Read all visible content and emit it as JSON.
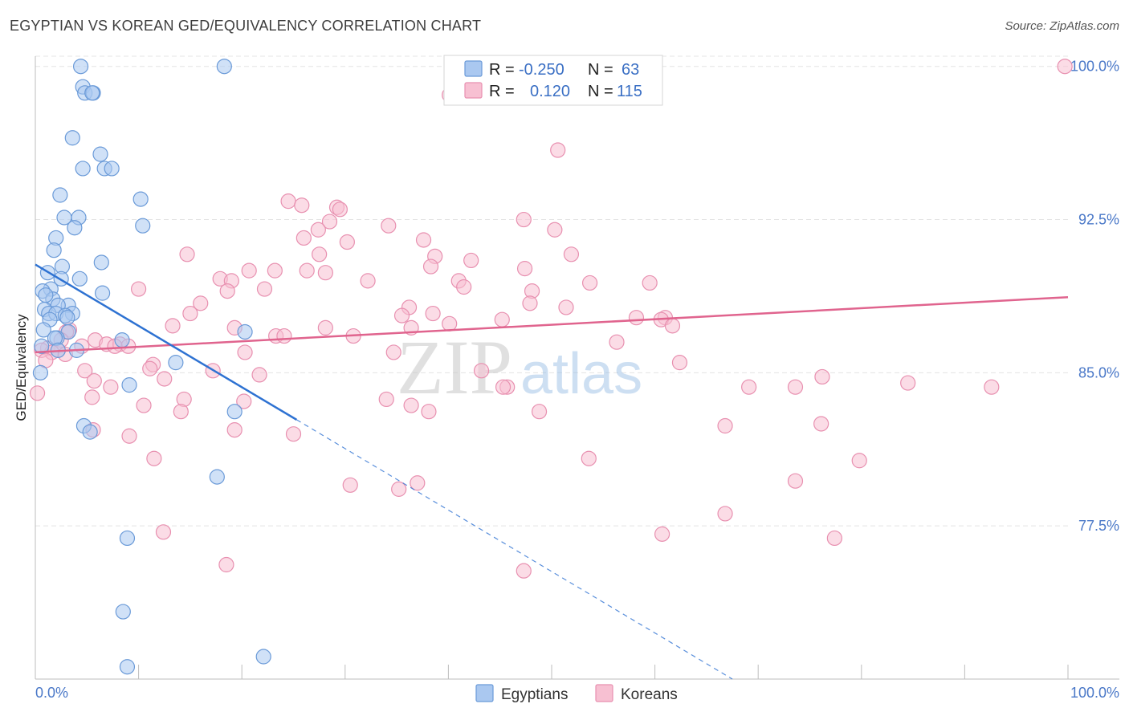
{
  "header": {
    "title": "EGYPTIAN VS KOREAN GED/EQUIVALENCY CORRELATION CHART",
    "source": "Source: ZipAtlas.com"
  },
  "watermark": {
    "zip": "ZIP",
    "atlas": "atlas"
  },
  "colors": {
    "egyptians_fill": "#aac8f0",
    "egyptians_stroke": "#6a9ad8",
    "egyptians_line": "#2e72d2",
    "koreans_fill": "#f7c0d2",
    "koreans_stroke": "#e890b0",
    "koreans_line": "#e0648e",
    "tick_text": "#4a78c8",
    "grid": "#e4e4e4"
  },
  "legend": {
    "rows": [
      {
        "r_label": "R = ",
        "r_value": "-0.250",
        "n_label": "N = ",
        "n_value": "63"
      },
      {
        "r_label": "R = ",
        "r_value": "0.120",
        "n_label": "N = ",
        "n_value": "115"
      }
    ]
  },
  "chart_data": {
    "type": "scatter",
    "xlabel": "",
    "ylabel": "GED/Equivalency",
    "xlim": [
      0,
      100
    ],
    "ylim": [
      70.0,
      100.5
    ],
    "x_tick_labels": [
      "0.0%",
      "100.0%"
    ],
    "y_ticks": [
      77.5,
      85.0,
      92.5,
      100.0
    ],
    "y_tick_labels": [
      "77.5%",
      "85.0%",
      "92.5%",
      "100.0%"
    ],
    "grid": true,
    "series": [
      {
        "name": "Egyptians",
        "r": -0.25,
        "n": 63,
        "trend": {
          "x": [
            0.0,
            25.3
          ],
          "y": [
            90.3,
            82.7
          ]
        },
        "trend_extension": {
          "x": [
            25.3,
            67.5
          ],
          "y": [
            82.7,
            70.0
          ]
        },
        "points": [
          [
            4.4,
            100.0
          ],
          [
            18.3,
            100.0
          ],
          [
            4.6,
            99.0
          ],
          [
            4.8,
            98.7
          ],
          [
            5.6,
            98.7
          ],
          [
            5.5,
            98.7
          ],
          [
            3.6,
            96.5
          ],
          [
            6.3,
            95.7
          ],
          [
            4.6,
            95.0
          ],
          [
            6.7,
            95.0
          ],
          [
            7.4,
            95.0
          ],
          [
            2.4,
            93.7
          ],
          [
            10.2,
            93.5
          ],
          [
            2.8,
            92.6
          ],
          [
            4.2,
            92.6
          ],
          [
            3.8,
            92.1
          ],
          [
            10.4,
            92.2
          ],
          [
            2.0,
            91.6
          ],
          [
            1.8,
            91.0
          ],
          [
            6.4,
            90.4
          ],
          [
            2.6,
            90.2
          ],
          [
            1.2,
            89.9
          ],
          [
            4.3,
            89.6
          ],
          [
            2.5,
            89.6
          ],
          [
            1.5,
            89.1
          ],
          [
            0.7,
            89.0
          ],
          [
            6.5,
            88.9
          ],
          [
            1.7,
            88.6
          ],
          [
            1.0,
            88.8
          ],
          [
            3.2,
            88.3
          ],
          [
            2.2,
            88.3
          ],
          [
            0.9,
            88.1
          ],
          [
            1.3,
            87.9
          ],
          [
            3.6,
            87.9
          ],
          [
            2.0,
            87.9
          ],
          [
            1.4,
            87.6
          ],
          [
            2.9,
            87.8
          ],
          [
            3.1,
            87.7
          ],
          [
            0.8,
            87.1
          ],
          [
            3.2,
            87.0
          ],
          [
            20.3,
            87.0
          ],
          [
            2.1,
            86.7
          ],
          [
            1.9,
            86.7
          ],
          [
            8.4,
            86.6
          ],
          [
            2.2,
            86.1
          ],
          [
            4.0,
            86.1
          ],
          [
            0.6,
            86.3
          ],
          [
            13.6,
            85.5
          ],
          [
            0.5,
            85.0
          ],
          [
            9.1,
            84.4
          ],
          [
            19.3,
            83.1
          ],
          [
            4.7,
            82.4
          ],
          [
            5.3,
            82.1
          ],
          [
            17.6,
            79.9
          ],
          [
            8.9,
            76.9
          ],
          [
            8.5,
            73.3
          ],
          [
            8.9,
            70.6
          ],
          [
            22.1,
            71.1
          ]
        ]
      },
      {
        "name": "Koreans",
        "r": 0.12,
        "n": 115,
        "trend": {
          "x": [
            0.0,
            100.0
          ],
          "y": [
            86.0,
            88.7
          ]
        },
        "points": [
          [
            40.1,
            98.6
          ],
          [
            99.7,
            100.0
          ],
          [
            50.6,
            95.9
          ],
          [
            24.5,
            93.4
          ],
          [
            25.8,
            93.2
          ],
          [
            29.2,
            93.1
          ],
          [
            29.5,
            93.0
          ],
          [
            28.5,
            92.4
          ],
          [
            47.3,
            92.5
          ],
          [
            34.2,
            92.2
          ],
          [
            50.3,
            92.0
          ],
          [
            27.4,
            92.0
          ],
          [
            37.6,
            91.5
          ],
          [
            26.0,
            91.6
          ],
          [
            30.2,
            91.4
          ],
          [
            14.7,
            90.8
          ],
          [
            27.5,
            90.8
          ],
          [
            38.7,
            90.7
          ],
          [
            51.9,
            90.8
          ],
          [
            42.2,
            90.5
          ],
          [
            38.3,
            90.2
          ],
          [
            20.7,
            90.0
          ],
          [
            28.1,
            89.9
          ],
          [
            26.3,
            90.0
          ],
          [
            47.4,
            90.1
          ],
          [
            23.2,
            90.0
          ],
          [
            17.9,
            89.6
          ],
          [
            19.0,
            89.5
          ],
          [
            32.2,
            89.5
          ],
          [
            41.0,
            89.5
          ],
          [
            53.7,
            89.4
          ],
          [
            59.5,
            89.4
          ],
          [
            41.5,
            89.2
          ],
          [
            10.0,
            89.1
          ],
          [
            18.6,
            89.0
          ],
          [
            22.2,
            89.1
          ],
          [
            48.1,
            89.0
          ],
          [
            47.9,
            88.4
          ],
          [
            16.0,
            88.4
          ],
          [
            36.2,
            88.2
          ],
          [
            15.0,
            87.9
          ],
          [
            51.4,
            88.2
          ],
          [
            35.5,
            87.8
          ],
          [
            38.5,
            87.9
          ],
          [
            58.2,
            87.7
          ],
          [
            61.0,
            87.7
          ],
          [
            60.6,
            87.6
          ],
          [
            45.2,
            87.6
          ],
          [
            40.1,
            87.4
          ],
          [
            13.3,
            87.3
          ],
          [
            19.3,
            87.2
          ],
          [
            28.1,
            87.2
          ],
          [
            36.4,
            87.2
          ],
          [
            61.7,
            87.3
          ],
          [
            3.3,
            87.1
          ],
          [
            3.0,
            87.0
          ],
          [
            23.3,
            86.8
          ],
          [
            24.1,
            86.8
          ],
          [
            30.8,
            86.8
          ],
          [
            2.5,
            86.6
          ],
          [
            5.8,
            86.6
          ],
          [
            6.9,
            86.4
          ],
          [
            8.2,
            86.4
          ],
          [
            9.0,
            86.3
          ],
          [
            4.5,
            86.3
          ],
          [
            7.7,
            86.3
          ],
          [
            56.3,
            86.5
          ],
          [
            1.2,
            86.2
          ],
          [
            2.2,
            86.1
          ],
          [
            1.6,
            86.0
          ],
          [
            20.3,
            86.0
          ],
          [
            34.7,
            86.0
          ],
          [
            0.6,
            86.1
          ],
          [
            2.9,
            85.9
          ],
          [
            1.0,
            85.6
          ],
          [
            11.4,
            85.4
          ],
          [
            11.1,
            85.2
          ],
          [
            4.8,
            85.1
          ],
          [
            17.2,
            85.1
          ],
          [
            43.2,
            85.1
          ],
          [
            62.4,
            85.5
          ],
          [
            21.7,
            84.9
          ],
          [
            12.5,
            84.7
          ],
          [
            5.7,
            84.6
          ],
          [
            7.3,
            84.3
          ],
          [
            45.7,
            84.3
          ],
          [
            45.3,
            84.3
          ],
          [
            69.1,
            84.3
          ],
          [
            73.6,
            84.3
          ],
          [
            76.2,
            84.8
          ],
          [
            84.5,
            84.5
          ],
          [
            92.6,
            84.3
          ],
          [
            0.2,
            84.0
          ],
          [
            5.5,
            83.8
          ],
          [
            14.4,
            83.7
          ],
          [
            34.0,
            83.7
          ],
          [
            20.2,
            83.6
          ],
          [
            36.4,
            83.4
          ],
          [
            10.5,
            83.4
          ],
          [
            14.1,
            83.1
          ],
          [
            48.8,
            83.1
          ],
          [
            38.1,
            83.1
          ],
          [
            66.8,
            82.4
          ],
          [
            76.1,
            82.5
          ],
          [
            5.6,
            82.2
          ],
          [
            19.3,
            82.2
          ],
          [
            25.0,
            82.0
          ],
          [
            9.1,
            81.9
          ],
          [
            11.5,
            80.8
          ],
          [
            53.6,
            80.8
          ],
          [
            79.8,
            80.7
          ],
          [
            73.6,
            79.7
          ],
          [
            37.0,
            79.6
          ],
          [
            30.5,
            79.5
          ],
          [
            35.2,
            79.3
          ],
          [
            66.8,
            78.1
          ],
          [
            77.4,
            76.9
          ],
          [
            12.4,
            77.2
          ],
          [
            60.7,
            77.1
          ],
          [
            18.5,
            75.6
          ],
          [
            47.3,
            75.3
          ]
        ]
      }
    ]
  },
  "bottom_legend": {
    "items": [
      "Egyptians",
      "Koreans"
    ]
  }
}
